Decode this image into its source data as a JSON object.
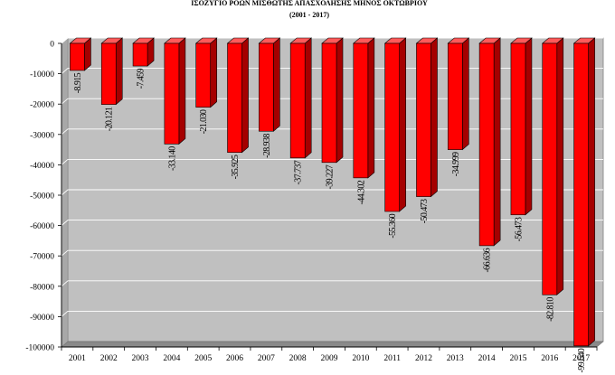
{
  "chart_data": {
    "type": "bar",
    "title": "ΙΣΟΖΥΓΙΟ ΡΟΩΝ ΜΙΣΘΩΤΗΣ ΑΠΑΣΧΟΛΗΣΗΣ ΜΗΝΟΣ  ΟΚΤΩΒΡΙΟΥ",
    "subtitle": "(2001 - 2017)",
    "xlabel": "",
    "ylabel": "",
    "ylim": [
      -100000,
      0
    ],
    "yticks": [
      0,
      -10000,
      -20000,
      -30000,
      -40000,
      -50000,
      -60000,
      -70000,
      -80000,
      -90000,
      -100000
    ],
    "ytick_labels": [
      "0",
      "-10000",
      "-20000",
      "-30000",
      "-40000",
      "-50000",
      "-60000",
      "-70000",
      "-80000",
      "-90000",
      "-100000"
    ],
    "grid": true,
    "legend": "none",
    "categories": [
      "2001",
      "2002",
      "2003",
      "2004",
      "2005",
      "2006",
      "2007",
      "2008",
      "2009",
      "2010",
      "2011",
      "2012",
      "2013",
      "2014",
      "2015",
      "2016",
      "2017"
    ],
    "values": [
      -8915,
      -20121,
      -7459,
      -33140,
      -21030,
      -35925,
      -28938,
      -37737,
      -39227,
      -44302,
      -55360,
      -50473,
      -34999,
      -66636,
      -56473,
      -82810,
      -99640
    ],
    "data_labels": [
      "-8.915",
      "-20.121",
      "-7.459",
      "-33.140",
      "-21.030",
      "-35.925",
      "-28.938",
      "-37.737",
      "-39.227",
      "-44.302",
      "-55.360",
      "-50.473",
      "-34.999",
      "-66.636",
      "-56.473",
      "-82.810",
      "-99.640"
    ],
    "colors": {
      "bar_front": "#ff0000",
      "bar_side": "#a50000",
      "bar_top": "#ff5a5a",
      "plot_back": "#c0c0c0",
      "plot_floor": "#8a8a8a",
      "grid": "#ffffff"
    }
  }
}
